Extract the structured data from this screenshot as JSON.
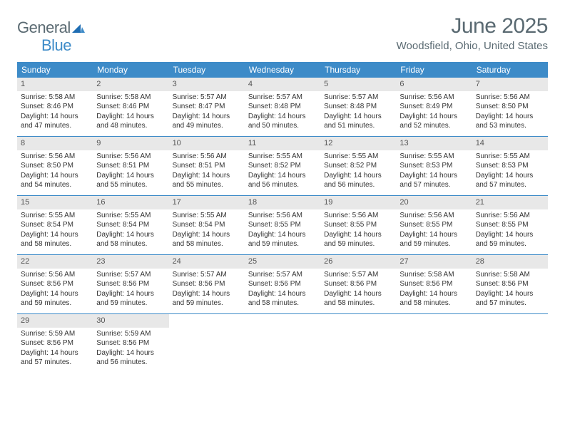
{
  "brand": {
    "part1": "General",
    "part2": "Blue"
  },
  "title": "June 2025",
  "location": "Woodsfield, Ohio, United States",
  "colors": {
    "header_bg": "#3d8bc8",
    "daynum_bg": "#e8e8e8",
    "text": "#333333",
    "muted": "#5a6a72",
    "white": "#ffffff",
    "rule": "#3d8bc8"
  },
  "weekdays": [
    "Sunday",
    "Monday",
    "Tuesday",
    "Wednesday",
    "Thursday",
    "Friday",
    "Saturday"
  ],
  "weeks": [
    [
      {
        "n": "1",
        "sunrise": "5:58 AM",
        "sunset": "8:46 PM",
        "daylight": "14 hours and 47 minutes."
      },
      {
        "n": "2",
        "sunrise": "5:58 AM",
        "sunset": "8:46 PM",
        "daylight": "14 hours and 48 minutes."
      },
      {
        "n": "3",
        "sunrise": "5:57 AM",
        "sunset": "8:47 PM",
        "daylight": "14 hours and 49 minutes."
      },
      {
        "n": "4",
        "sunrise": "5:57 AM",
        "sunset": "8:48 PM",
        "daylight": "14 hours and 50 minutes."
      },
      {
        "n": "5",
        "sunrise": "5:57 AM",
        "sunset": "8:48 PM",
        "daylight": "14 hours and 51 minutes."
      },
      {
        "n": "6",
        "sunrise": "5:56 AM",
        "sunset": "8:49 PM",
        "daylight": "14 hours and 52 minutes."
      },
      {
        "n": "7",
        "sunrise": "5:56 AM",
        "sunset": "8:50 PM",
        "daylight": "14 hours and 53 minutes."
      }
    ],
    [
      {
        "n": "8",
        "sunrise": "5:56 AM",
        "sunset": "8:50 PM",
        "daylight": "14 hours and 54 minutes."
      },
      {
        "n": "9",
        "sunrise": "5:56 AM",
        "sunset": "8:51 PM",
        "daylight": "14 hours and 55 minutes."
      },
      {
        "n": "10",
        "sunrise": "5:56 AM",
        "sunset": "8:51 PM",
        "daylight": "14 hours and 55 minutes."
      },
      {
        "n": "11",
        "sunrise": "5:55 AM",
        "sunset": "8:52 PM",
        "daylight": "14 hours and 56 minutes."
      },
      {
        "n": "12",
        "sunrise": "5:55 AM",
        "sunset": "8:52 PM",
        "daylight": "14 hours and 56 minutes."
      },
      {
        "n": "13",
        "sunrise": "5:55 AM",
        "sunset": "8:53 PM",
        "daylight": "14 hours and 57 minutes."
      },
      {
        "n": "14",
        "sunrise": "5:55 AM",
        "sunset": "8:53 PM",
        "daylight": "14 hours and 57 minutes."
      }
    ],
    [
      {
        "n": "15",
        "sunrise": "5:55 AM",
        "sunset": "8:54 PM",
        "daylight": "14 hours and 58 minutes."
      },
      {
        "n": "16",
        "sunrise": "5:55 AM",
        "sunset": "8:54 PM",
        "daylight": "14 hours and 58 minutes."
      },
      {
        "n": "17",
        "sunrise": "5:55 AM",
        "sunset": "8:54 PM",
        "daylight": "14 hours and 58 minutes."
      },
      {
        "n": "18",
        "sunrise": "5:56 AM",
        "sunset": "8:55 PM",
        "daylight": "14 hours and 59 minutes."
      },
      {
        "n": "19",
        "sunrise": "5:56 AM",
        "sunset": "8:55 PM",
        "daylight": "14 hours and 59 minutes."
      },
      {
        "n": "20",
        "sunrise": "5:56 AM",
        "sunset": "8:55 PM",
        "daylight": "14 hours and 59 minutes."
      },
      {
        "n": "21",
        "sunrise": "5:56 AM",
        "sunset": "8:55 PM",
        "daylight": "14 hours and 59 minutes."
      }
    ],
    [
      {
        "n": "22",
        "sunrise": "5:56 AM",
        "sunset": "8:56 PM",
        "daylight": "14 hours and 59 minutes."
      },
      {
        "n": "23",
        "sunrise": "5:57 AM",
        "sunset": "8:56 PM",
        "daylight": "14 hours and 59 minutes."
      },
      {
        "n": "24",
        "sunrise": "5:57 AM",
        "sunset": "8:56 PM",
        "daylight": "14 hours and 59 minutes."
      },
      {
        "n": "25",
        "sunrise": "5:57 AM",
        "sunset": "8:56 PM",
        "daylight": "14 hours and 58 minutes."
      },
      {
        "n": "26",
        "sunrise": "5:57 AM",
        "sunset": "8:56 PM",
        "daylight": "14 hours and 58 minutes."
      },
      {
        "n": "27",
        "sunrise": "5:58 AM",
        "sunset": "8:56 PM",
        "daylight": "14 hours and 58 minutes."
      },
      {
        "n": "28",
        "sunrise": "5:58 AM",
        "sunset": "8:56 PM",
        "daylight": "14 hours and 57 minutes."
      }
    ],
    [
      {
        "n": "29",
        "sunrise": "5:59 AM",
        "sunset": "8:56 PM",
        "daylight": "14 hours and 57 minutes."
      },
      {
        "n": "30",
        "sunrise": "5:59 AM",
        "sunset": "8:56 PM",
        "daylight": "14 hours and 56 minutes."
      },
      null,
      null,
      null,
      null,
      null
    ]
  ],
  "labels": {
    "sunrise": "Sunrise: ",
    "sunset": "Sunset: ",
    "daylight": "Daylight: "
  }
}
